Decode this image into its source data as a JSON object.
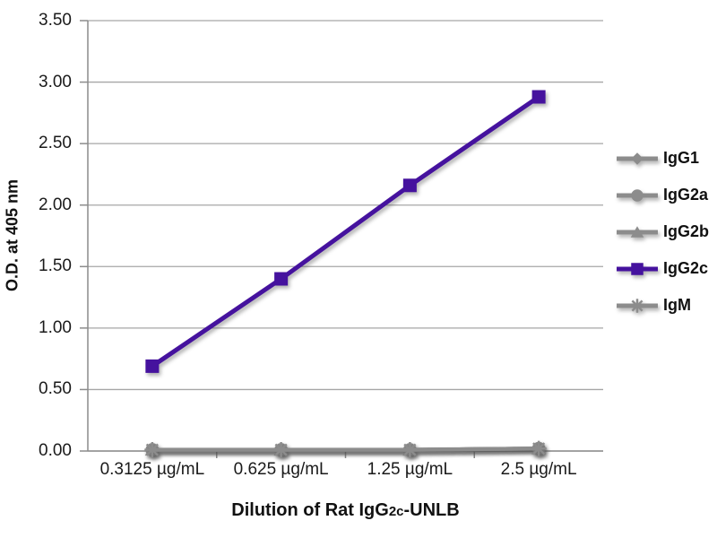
{
  "chart_data": {
    "type": "line",
    "title": {
      "prefix": "Dilution of Rat IgG",
      "subscript": "2c",
      "suffix": "-UNLB"
    },
    "ylabel": "O.D. at 405 nm",
    "categories": [
      "0.3125 µg/mL",
      "0.625 µg/mL",
      "1.25 µg/mL",
      "2.5 µg/mL"
    ],
    "ylim": [
      0,
      3.5
    ],
    "ytick_step": 0.5,
    "ytick_labels": [
      "0.00",
      "0.50",
      "1.00",
      "1.50",
      "2.00",
      "2.50",
      "3.00",
      "3.50"
    ],
    "grid": true,
    "legend_position": "right",
    "series": [
      {
        "name": "IgG1",
        "marker": "diamond",
        "color": "#8C8C8C",
        "values": [
          0.01,
          0.01,
          0.01,
          0.02
        ]
      },
      {
        "name": "IgG2a",
        "marker": "circle",
        "color": "#8C8C8C",
        "values": [
          0.01,
          0.01,
          0.01,
          0.02
        ]
      },
      {
        "name": "IgG2b",
        "marker": "triangle",
        "color": "#8C8C8C",
        "values": [
          0.01,
          0.01,
          0.01,
          0.02
        ]
      },
      {
        "name": "IgG2c",
        "marker": "square",
        "color": "#45129E",
        "values": [
          0.69,
          1.4,
          2.16,
          2.88
        ]
      },
      {
        "name": "IgM",
        "marker": "asterisk",
        "color": "#8C8C8C",
        "values": [
          0.01,
          0.01,
          0.01,
          0.02
        ]
      }
    ],
    "colors": {
      "grid": "#A6A6A6",
      "axis": "#8C8C8C",
      "tick_text": "#1A1A1A"
    }
  }
}
